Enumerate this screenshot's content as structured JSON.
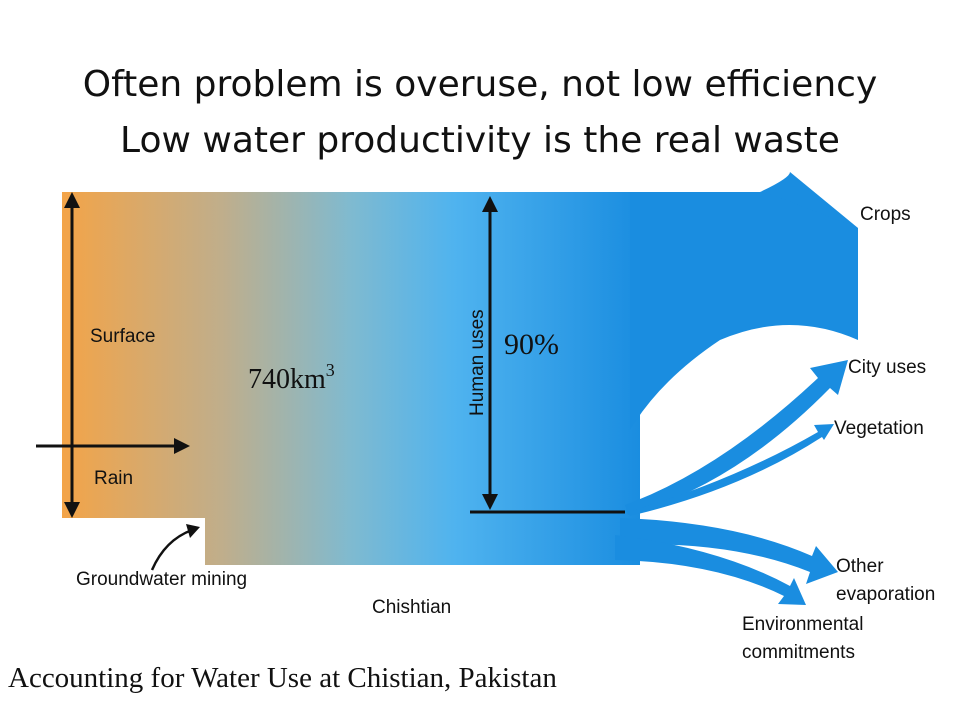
{
  "title_line1": "Often problem is overuse, not low efficiency",
  "title_line2": "Low water productivity is the real waste",
  "inflow_labels": {
    "surface": "Surface",
    "rain": "Rain",
    "groundwater": "Groundwater mining"
  },
  "total_volume": {
    "value": "740km",
    "superscript": "3"
  },
  "human_uses": {
    "label": "Human uses",
    "percent": "90%"
  },
  "outflows": {
    "crops": "Crops",
    "city": "City uses",
    "vegetation": "Vegetation",
    "other_evaporation_line1": "Other",
    "other_evaporation_line2": "evaporation",
    "environmental_line1": "Environmental",
    "environmental_line2": "commitments"
  },
  "location_label": "Chishtian",
  "caption": "Accounting for Water Use at Chistian, Pakistan",
  "colors": {
    "orange": "#f2a54a",
    "mid": "#5db8ee",
    "blue": "#1a8de0",
    "deep_blue": "#0f86dc"
  }
}
